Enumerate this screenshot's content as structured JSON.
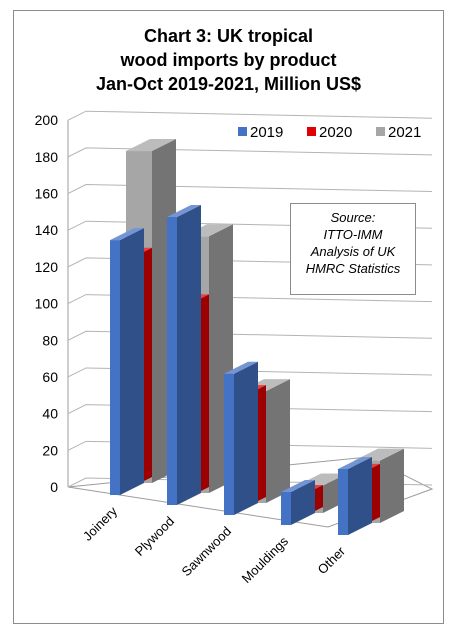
{
  "chart_data": {
    "type": "bar",
    "title_lines": [
      "Chart 3: UK tropical",
      "wood imports by product",
      "Jan-Oct 2019-2021, Million US$"
    ],
    "categories": [
      "Joinery",
      "Plywood",
      "Sawnwood",
      "Mouldings",
      "Other"
    ],
    "series": [
      {
        "name": "2019",
        "values": [
          139,
          157,
          77,
          18,
          36
        ],
        "color": "#4472c4"
      },
      {
        "name": "2020",
        "values": [
          125,
          105,
          61,
          12,
          29
        ],
        "color": "#e00000"
      },
      {
        "name": "2021",
        "values": [
          181,
          140,
          61,
          15,
          34
        ],
        "color": "#a6a6a6"
      }
    ],
    "y_ticks": [
      "0",
      "20",
      "40",
      "60",
      "80",
      "100",
      "120",
      "140",
      "160",
      "180",
      "200"
    ],
    "ylim": [
      0,
      200
    ],
    "grid": true,
    "legend_position": "top-right",
    "annotation_lines": [
      "Source:",
      "ITTO-IMM",
      "Analysis of UK",
      "HMRC Statistics"
    ]
  }
}
